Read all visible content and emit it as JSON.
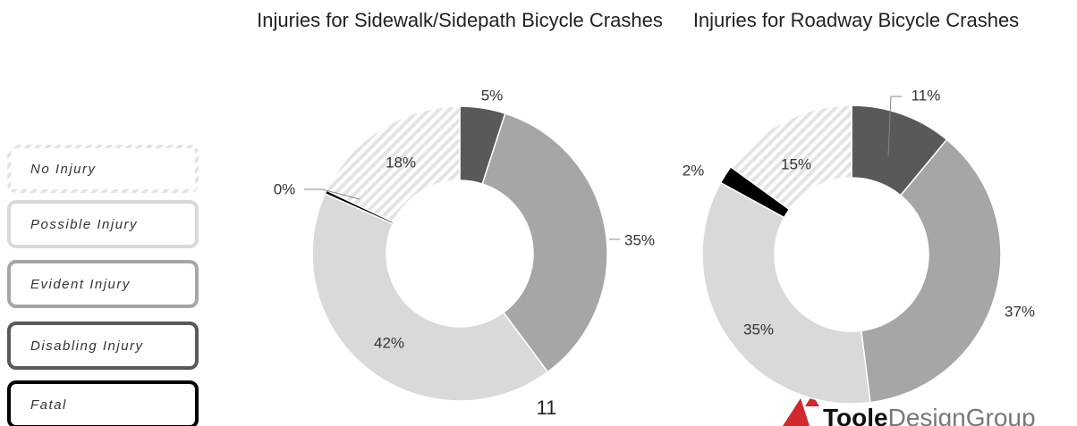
{
  "chart_data": [
    {
      "type": "donut",
      "title": "Injuries for Sidewalk/Sidepath Bicycle Crashes",
      "categories": [
        "Disabling Injury",
        "Evident Injury",
        "Possible Injury",
        "Fatal",
        "No Injury"
      ],
      "values": [
        5,
        35,
        42,
        0.4,
        18
      ],
      "value_labels": [
        "5%",
        "35%",
        "42%",
        "0%",
        "18%"
      ],
      "colors": [
        "#595959",
        "#a6a6a6",
        "#d9d9d9",
        "#000000",
        "#d9d9d9"
      ],
      "hatch": [
        false,
        false,
        false,
        false,
        true
      ]
    },
    {
      "type": "donut",
      "title": "Injuries for Roadway Bicycle Crashes",
      "categories": [
        "Disabling Injury",
        "Evident Injury",
        "Possible Injury",
        "Fatal",
        "No Injury"
      ],
      "values": [
        11,
        37,
        35,
        2,
        15
      ],
      "value_labels": [
        "11%",
        "37%",
        "35%",
        "2%",
        "15%"
      ],
      "colors": [
        "#595959",
        "#a6a6a6",
        "#d9d9d9",
        "#000000",
        "#d9d9d9"
      ],
      "hatch": [
        false,
        false,
        false,
        false,
        true
      ]
    }
  ],
  "footer": {
    "page_number": "11",
    "logo_bold": "Toole",
    "logo_light": "DesignGroup"
  }
}
